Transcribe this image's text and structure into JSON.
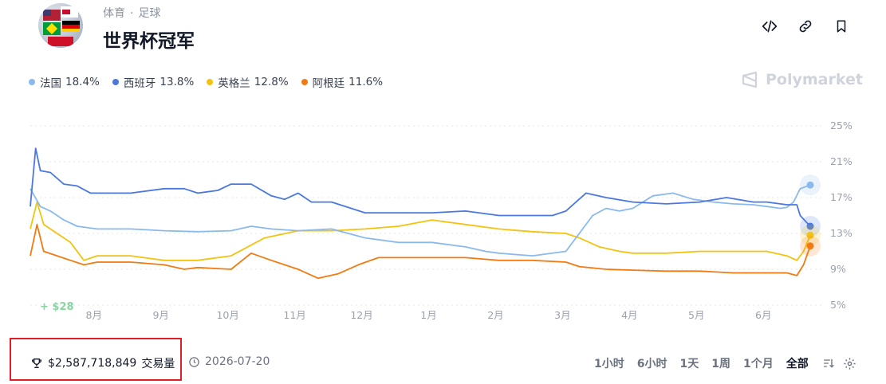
{
  "header": {
    "breadcrumb": [
      "体育",
      "足球"
    ],
    "breadcrumb_sep": "·",
    "title": "世界杯冠军"
  },
  "brand": "Polymarket",
  "legend": [
    {
      "name": "法国",
      "pct": "18.4%",
      "color": "#8ab9ee"
    },
    {
      "name": "西班牙",
      "pct": "13.8%",
      "color": "#4a78e0"
    },
    {
      "name": "英格兰",
      "pct": "12.8%",
      "color": "#f5c20f"
    },
    {
      "name": "阿根廷",
      "pct": "11.6%",
      "color": "#f27a11"
    }
  ],
  "chart_data": {
    "type": "line",
    "x_tick_labels": [
      "8月",
      "9月",
      "10月",
      "11月",
      "12月",
      "1月",
      "2月",
      "3月",
      "4月",
      "5月",
      "6月"
    ],
    "y_tick_labels": [
      "25%",
      "21%",
      "17%",
      "13%",
      "9%",
      "5%"
    ],
    "ylim": [
      5,
      25
    ],
    "xlim": [
      0,
      11.65
    ],
    "grid": "horizontal-dashed",
    "annotation": "+ $28",
    "series": [
      {
        "name": "法国",
        "color": "#8ab9ee",
        "last": 18.4,
        "points": [
          [
            0,
            18
          ],
          [
            0.15,
            16
          ],
          [
            0.3,
            15.5
          ],
          [
            0.5,
            14.5
          ],
          [
            0.7,
            13.8
          ],
          [
            1,
            13.5
          ],
          [
            1.5,
            13.5
          ],
          [
            2,
            13.3
          ],
          [
            2.5,
            13.2
          ],
          [
            3,
            13.3
          ],
          [
            3.3,
            13.8
          ],
          [
            3.6,
            13.5
          ],
          [
            4,
            13.3
          ],
          [
            4.5,
            13.5
          ],
          [
            5,
            12.5
          ],
          [
            5.5,
            12
          ],
          [
            6,
            12
          ],
          [
            6.5,
            11.5
          ],
          [
            6.8,
            11
          ],
          [
            7,
            10.8
          ],
          [
            7.5,
            10.5
          ],
          [
            8,
            11
          ],
          [
            8.2,
            13
          ],
          [
            8.4,
            15
          ],
          [
            8.6,
            15.8
          ],
          [
            8.8,
            15.5
          ],
          [
            9,
            15.8
          ],
          [
            9.3,
            17.2
          ],
          [
            9.6,
            17.5
          ],
          [
            9.9,
            16.8
          ],
          [
            10.2,
            16.5
          ],
          [
            10.5,
            16.3
          ],
          [
            10.8,
            16.2
          ],
          [
            11.0,
            16.0
          ],
          [
            11.2,
            15.8
          ],
          [
            11.3,
            15.9
          ],
          [
            11.4,
            16.5
          ],
          [
            11.5,
            18.0
          ],
          [
            11.65,
            18.4
          ]
        ]
      },
      {
        "name": "西班牙",
        "color": "#4a78e0",
        "last": 13.8,
        "points": [
          [
            0,
            16
          ],
          [
            0.08,
            22.5
          ],
          [
            0.15,
            20
          ],
          [
            0.3,
            19.8
          ],
          [
            0.5,
            18.5
          ],
          [
            0.7,
            18.3
          ],
          [
            0.9,
            17.5
          ],
          [
            1,
            17.5
          ],
          [
            1.5,
            17.5
          ],
          [
            2,
            18
          ],
          [
            2.3,
            18
          ],
          [
            2.5,
            17.5
          ],
          [
            2.8,
            17.8
          ],
          [
            3.0,
            18.5
          ],
          [
            3.3,
            18.5
          ],
          [
            3.6,
            17.2
          ],
          [
            3.8,
            16.8
          ],
          [
            4.0,
            17.5
          ],
          [
            4.2,
            16.5
          ],
          [
            4.5,
            16.5
          ],
          [
            5,
            15.3
          ],
          [
            5.5,
            15.3
          ],
          [
            6,
            15.3
          ],
          [
            6.5,
            15.5
          ],
          [
            7,
            15.0
          ],
          [
            7.5,
            15.0
          ],
          [
            7.8,
            15.0
          ],
          [
            8.0,
            15.5
          ],
          [
            8.3,
            17.5
          ],
          [
            8.6,
            17.0
          ],
          [
            9.0,
            16.5
          ],
          [
            9.5,
            16.3
          ],
          [
            10,
            16.5
          ],
          [
            10.4,
            17.0
          ],
          [
            10.8,
            16.5
          ],
          [
            11.0,
            16.5
          ],
          [
            11.3,
            16.2
          ],
          [
            11.45,
            16.2
          ],
          [
            11.5,
            15.0
          ],
          [
            11.65,
            13.8
          ]
        ]
      },
      {
        "name": "英格兰",
        "color": "#f5c20f",
        "last": 12.8,
        "points": [
          [
            0,
            13.5
          ],
          [
            0.1,
            16.5
          ],
          [
            0.2,
            14
          ],
          [
            0.4,
            13
          ],
          [
            0.6,
            12
          ],
          [
            0.8,
            10
          ],
          [
            1,
            10.5
          ],
          [
            1.5,
            10.5
          ],
          [
            2,
            10
          ],
          [
            2.5,
            10
          ],
          [
            3,
            10.5
          ],
          [
            3.5,
            12.5
          ],
          [
            4,
            13.3
          ],
          [
            4.5,
            13.3
          ],
          [
            5,
            13.5
          ],
          [
            5.5,
            13.8
          ],
          [
            6,
            14.5
          ],
          [
            6.5,
            14.0
          ],
          [
            7,
            13.5
          ],
          [
            7.5,
            13.2
          ],
          [
            8,
            13.0
          ],
          [
            8.2,
            12.5
          ],
          [
            8.5,
            11.5
          ],
          [
            8.8,
            11.0
          ],
          [
            9.0,
            10.8
          ],
          [
            9.5,
            10.8
          ],
          [
            10,
            11.0
          ],
          [
            10.5,
            11.0
          ],
          [
            11.0,
            11.0
          ],
          [
            11.3,
            10.5
          ],
          [
            11.45,
            10.0
          ],
          [
            11.55,
            11.0
          ],
          [
            11.65,
            12.8
          ]
        ]
      },
      {
        "name": "阿根廷",
        "color": "#f27a11",
        "last": 11.6,
        "points": [
          [
            0,
            10.5
          ],
          [
            0.1,
            14
          ],
          [
            0.2,
            11
          ],
          [
            0.4,
            10.5
          ],
          [
            0.6,
            10
          ],
          [
            0.8,
            9.5
          ],
          [
            1,
            9.8
          ],
          [
            1.5,
            9.8
          ],
          [
            2,
            9.5
          ],
          [
            2.3,
            9.0
          ],
          [
            2.5,
            9.2
          ],
          [
            3,
            9.0
          ],
          [
            3.3,
            10.8
          ],
          [
            3.6,
            10.0
          ],
          [
            4,
            9.0
          ],
          [
            4.3,
            8.0
          ],
          [
            4.6,
            8.5
          ],
          [
            4.9,
            9.5
          ],
          [
            5.2,
            10.3
          ],
          [
            5.5,
            10.3
          ],
          [
            6,
            10.3
          ],
          [
            6.5,
            10.3
          ],
          [
            7,
            10.0
          ],
          [
            7.5,
            10.0
          ],
          [
            8.0,
            9.8
          ],
          [
            8.2,
            9.3
          ],
          [
            8.6,
            9.0
          ],
          [
            9.0,
            8.9
          ],
          [
            9.5,
            8.8
          ],
          [
            10,
            8.8
          ],
          [
            10.5,
            8.6
          ],
          [
            11.0,
            8.6
          ],
          [
            11.3,
            8.6
          ],
          [
            11.45,
            8.3
          ],
          [
            11.55,
            9.5
          ],
          [
            11.65,
            11.6
          ]
        ]
      }
    ]
  },
  "footer": {
    "volume_amount": "$2,587,718,849",
    "volume_label": "交易量",
    "date": "2026-07-20",
    "ranges": [
      "1小时",
      "6小时",
      "1天",
      "1周",
      "1个月",
      "全部"
    ],
    "active_range": "全部"
  },
  "icons": [
    "code-icon",
    "link-icon",
    "bookmark-icon",
    "trophy-icon",
    "clock-icon",
    "sort-icon",
    "settings-icon",
    "polymarket-logo-icon"
  ]
}
